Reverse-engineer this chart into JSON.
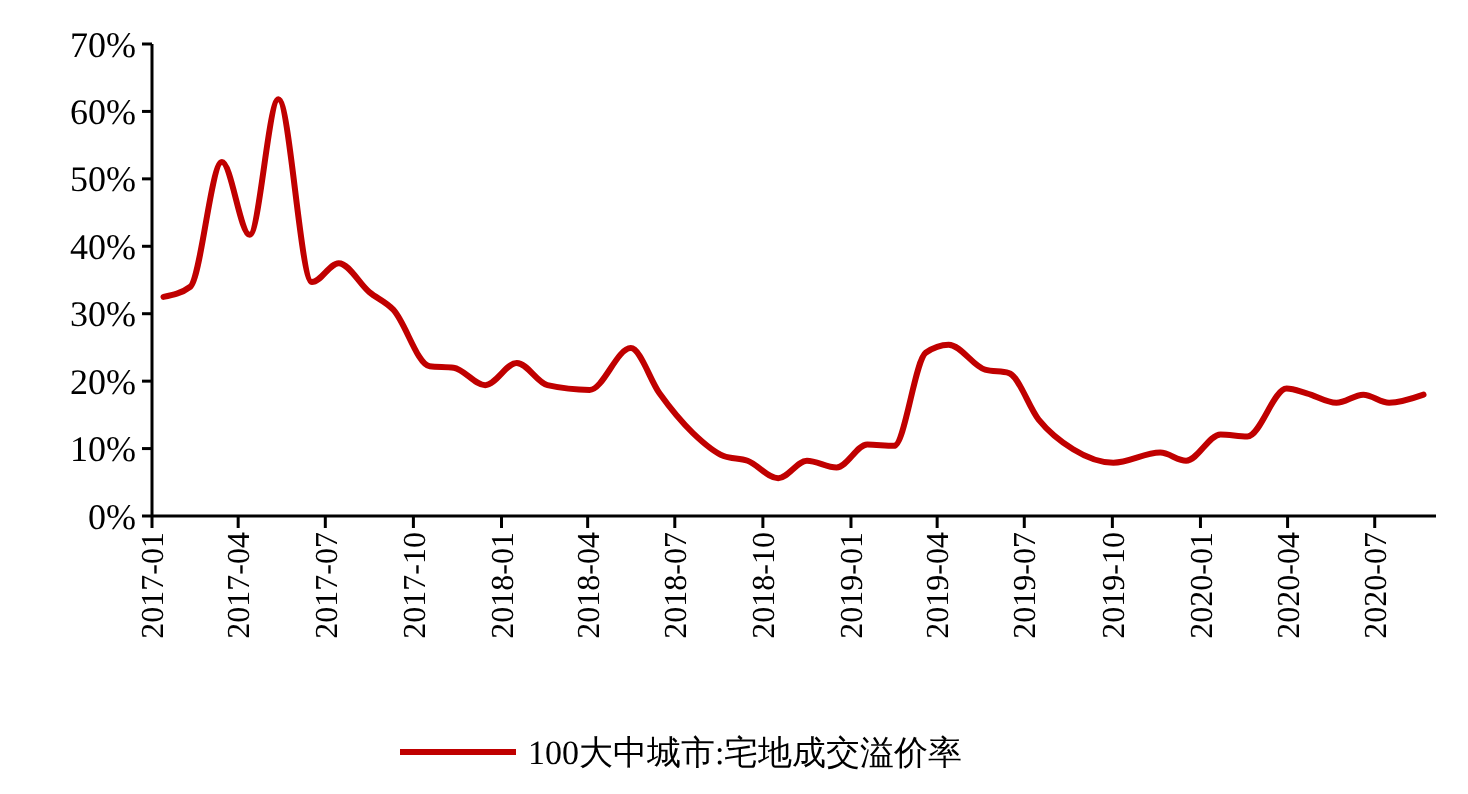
{
  "chart_data": {
    "type": "line",
    "legend": "bottom",
    "grid": false,
    "line_style": "solid",
    "marker": "none",
    "xlim": [
      "2017-01",
      "2020-09-03"
    ],
    "xticks": [
      "2017-01",
      "2017-04",
      "2017-07",
      "2017-10",
      "2018-01",
      "2018-04",
      "2018-07",
      "2018-10",
      "2019-01",
      "2019-04",
      "2019-07",
      "2019-10",
      "2020-01",
      "2020-04",
      "2020-07"
    ],
    "ylim": [
      0,
      70
    ],
    "yticks": [
      {
        "value": 0,
        "label": "0%"
      },
      {
        "value": 10,
        "label": "10%"
      },
      {
        "value": 20,
        "label": "20%"
      },
      {
        "value": 30,
        "label": "30%"
      },
      {
        "value": 40,
        "label": "40%"
      },
      {
        "value": 50,
        "label": "50%"
      },
      {
        "value": 60,
        "label": "60%"
      },
      {
        "value": 70,
        "label": "70%"
      }
    ],
    "x": [
      "2017-01-13",
      "2017-02-10",
      "2017-03-15",
      "2017-04-13",
      "2017-05-13",
      "2017-06-17",
      "2017-07-15",
      "2017-08-16",
      "2017-09-10",
      "2017-10-18",
      "2017-11-12",
      "2017-12-15",
      "2018-01-17",
      "2018-02-18",
      "2018-04-03",
      "2018-05-16",
      "2018-06-15",
      "2018-07-20",
      "2018-08-21",
      "2018-09-15",
      "2018-10-17",
      "2018-11-16",
      "2018-12-17",
      "2019-01-18",
      "2019-02-15",
      "2019-03-20",
      "2019-04-13",
      "2019-05-21",
      "2019-06-15",
      "2019-07-16",
      "2019-08-21",
      "2019-10-02",
      "2019-11-20",
      "2019-12-17",
      "2020-01-22",
      "2020-02-19",
      "2020-03-31",
      "2020-04-21",
      "2020-05-22",
      "2020-06-19",
      "2020-07-16",
      "2020-08-21"
    ],
    "series": [
      {
        "name": "100大中城市:宅地成交溢价率",
        "color": "#c00000",
        "values": [
          32.5,
          34,
          52.5,
          41.7,
          61.8,
          34.7,
          37.5,
          33.2,
          30.6,
          22.2,
          22,
          19.4,
          22.7,
          19.4,
          18.7,
          24.9,
          18.2,
          12.3,
          8.9,
          8.2,
          5.6,
          8.2,
          7.2,
          10.6,
          10.4,
          24.2,
          25.4,
          21.7,
          21.2,
          14.3,
          9.9,
          7.9,
          9.4,
          8.2,
          12.1,
          11.8,
          18.9,
          18.2,
          16.8,
          18,
          16.8,
          18
        ]
      }
    ]
  }
}
